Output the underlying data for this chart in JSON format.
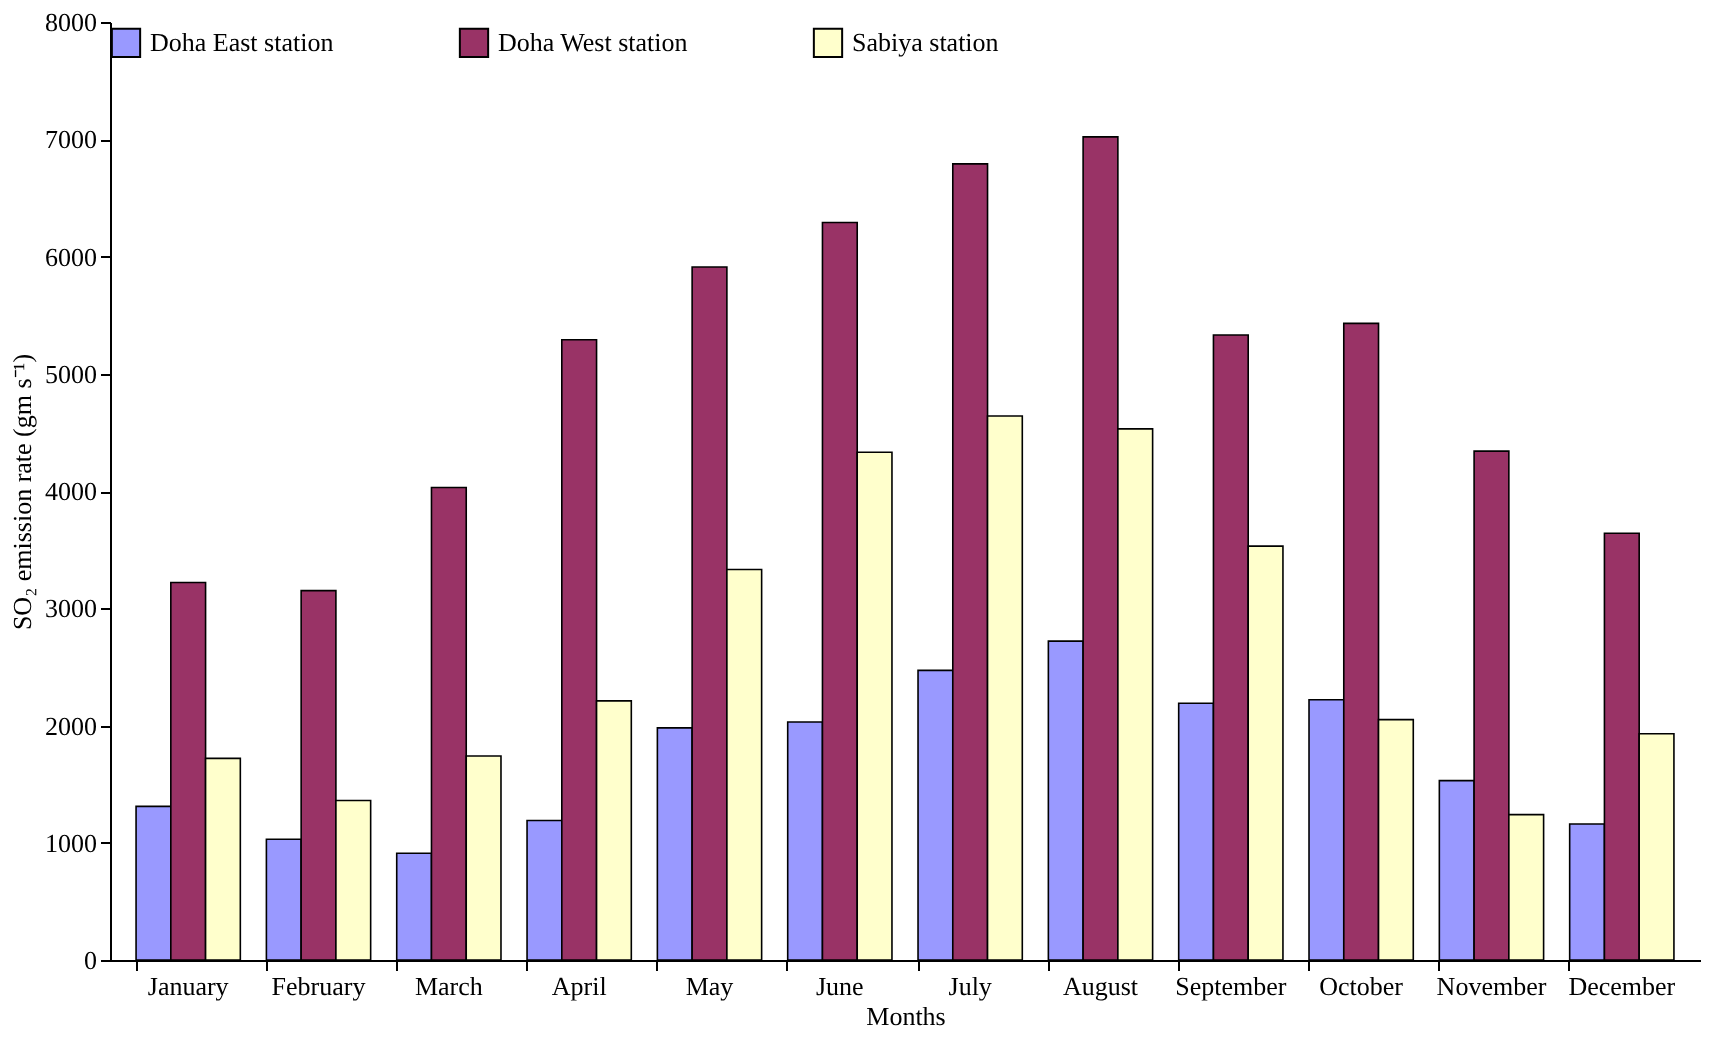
{
  "chart_data": {
    "type": "bar",
    "xlabel": "Months",
    "ylabel": "SO₂ emission rate (gm s⁻¹)",
    "categories": [
      "January",
      "February",
      "March",
      "April",
      "May",
      "June",
      "July",
      "August",
      "September",
      "October",
      "November",
      "December"
    ],
    "series": [
      {
        "name": "Doha East station",
        "color": "#9999ff",
        "values": [
          1310,
          1030,
          910,
          1190,
          1980,
          2030,
          2470,
          2720,
          2190,
          2220,
          1530,
          1160
        ]
      },
      {
        "name": "Doha West station",
        "color": "#993366",
        "values": [
          3220,
          3150,
          4030,
          5290,
          5910,
          6290,
          6790,
          7020,
          5330,
          5430,
          4340,
          3640
        ]
      },
      {
        "name": "Sabiya station",
        "color": "#ffffcc",
        "values": [
          1720,
          1360,
          1740,
          2210,
          3330,
          4330,
          4640,
          4530,
          3530,
          2050,
          1240,
          1930
        ]
      }
    ],
    "ylim": [
      0,
      8000
    ],
    "yticks": [
      0,
      1000,
      2000,
      3000,
      4000,
      5000,
      6000,
      7000,
      8000
    ],
    "grid": false,
    "legend": "top"
  }
}
